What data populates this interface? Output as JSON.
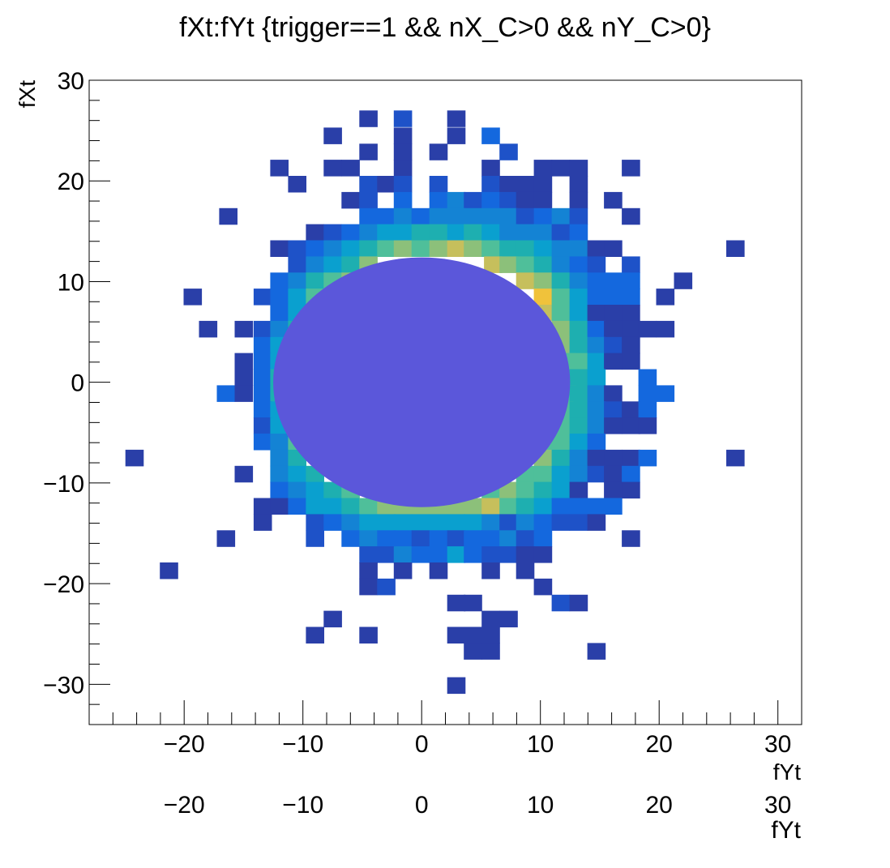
{
  "chart_data": {
    "type": "heatmap",
    "title": "fXt:fYt {trigger==1 && nX_C>0 && nY_C>0}",
    "xlabel": "fYt",
    "ylabel": "fXt",
    "xlim": [
      -28,
      32
    ],
    "ylim": [
      -34,
      30
    ],
    "xticks": [
      -20,
      -10,
      0,
      10,
      20,
      30
    ],
    "yticks": [
      -30,
      -20,
      -10,
      0,
      10,
      20,
      30
    ],
    "xtick_labels": [
      "−20",
      "−10",
      "0",
      "10",
      "20",
      "30"
    ],
    "ytick_labels": [
      "−30",
      "−20",
      "−10",
      "0",
      "10",
      "20",
      "30"
    ],
    "ghost_xtick_labels": [
      "−20",
      "−10",
      "0",
      "10",
      "20",
      "30"
    ],
    "ghost_xlabel": "fYt",
    "bin_width": 1.5,
    "bin_height": 1.6,
    "colors": {
      "l1": "#2a3fa8",
      "l2": "#1e52c8",
      "l3": "#1468de",
      "l4": "#1483d4",
      "l5": "#0aa0cf",
      "l6": "#1eafb0",
      "l7": "#4fbf9a",
      "l8": "#8cc07a",
      "l9": "#c6bf5c",
      "l10": "#f0c23b",
      "overlay": "#5b57da"
    },
    "overlay_ellipse": {
      "cx": 0,
      "cy": 0,
      "rx": 12.5,
      "ry": 12.4
    },
    "bins": [
      [
        -4.5,
        26.2,
        1
      ],
      [
        -1.6,
        26.2,
        2
      ],
      [
        2.9,
        26.2,
        1
      ],
      [
        -7.5,
        24.5,
        1
      ],
      [
        -1.6,
        24.5,
        1
      ],
      [
        2.9,
        24.5,
        1
      ],
      [
        5.8,
        24.5,
        3
      ],
      [
        -4.5,
        22.9,
        1
      ],
      [
        -1.6,
        22.9,
        1
      ],
      [
        1.4,
        22.9,
        1
      ],
      [
        7.3,
        22.9,
        2
      ],
      [
        -12.0,
        21.3,
        1
      ],
      [
        -7.5,
        21.3,
        1
      ],
      [
        -6.0,
        21.3,
        1
      ],
      [
        -1.6,
        21.3,
        1
      ],
      [
        5.8,
        21.3,
        1
      ],
      [
        10.2,
        21.3,
        1
      ],
      [
        11.7,
        21.3,
        1
      ],
      [
        13.2,
        21.3,
        1
      ],
      [
        17.6,
        21.3,
        1
      ],
      [
        -10.5,
        19.7,
        1
      ],
      [
        -4.5,
        19.7,
        2
      ],
      [
        -3.0,
        19.7,
        1
      ],
      [
        -1.6,
        19.7,
        2
      ],
      [
        1.4,
        19.7,
        2
      ],
      [
        5.8,
        19.7,
        2
      ],
      [
        7.3,
        19.7,
        1
      ],
      [
        8.7,
        19.7,
        1
      ],
      [
        10.2,
        19.7,
        1
      ],
      [
        13.2,
        19.7,
        1
      ],
      [
        -6.0,
        18.1,
        1
      ],
      [
        -4.5,
        18.1,
        2
      ],
      [
        -1.6,
        18.1,
        3
      ],
      [
        1.4,
        18.1,
        3
      ],
      [
        2.9,
        18.1,
        4
      ],
      [
        4.3,
        18.1,
        2
      ],
      [
        5.8,
        18.1,
        3
      ],
      [
        7.3,
        18.1,
        2
      ],
      [
        8.7,
        18.1,
        1
      ],
      [
        10.2,
        18.1,
        1
      ],
      [
        13.2,
        18.1,
        1
      ],
      [
        16.1,
        18.1,
        1
      ],
      [
        -16.3,
        16.5,
        1
      ],
      [
        -4.5,
        16.5,
        3
      ],
      [
        -3.0,
        16.5,
        3
      ],
      [
        -1.6,
        16.5,
        4
      ],
      [
        -0.1,
        16.5,
        3
      ],
      [
        1.4,
        16.5,
        4
      ],
      [
        2.9,
        16.5,
        4
      ],
      [
        4.3,
        16.5,
        4
      ],
      [
        5.8,
        16.5,
        4
      ],
      [
        7.3,
        16.5,
        4
      ],
      [
        8.7,
        16.5,
        2
      ],
      [
        10.2,
        16.5,
        3
      ],
      [
        11.7,
        16.5,
        4
      ],
      [
        13.2,
        16.5,
        2
      ],
      [
        17.6,
        16.5,
        1
      ],
      [
        -9.0,
        14.9,
        1
      ],
      [
        -7.5,
        14.9,
        2
      ],
      [
        -6.0,
        14.9,
        3
      ],
      [
        -4.5,
        14.9,
        4
      ],
      [
        -3.0,
        14.9,
        5
      ],
      [
        -1.6,
        14.9,
        5
      ],
      [
        -0.1,
        14.9,
        6
      ],
      [
        1.4,
        14.9,
        6
      ],
      [
        2.9,
        14.9,
        5
      ],
      [
        4.3,
        14.9,
        6
      ],
      [
        5.8,
        14.9,
        5
      ],
      [
        7.3,
        14.9,
        4
      ],
      [
        8.7,
        14.9,
        4
      ],
      [
        10.2,
        14.9,
        4
      ],
      [
        11.7,
        14.9,
        2
      ],
      [
        13.2,
        14.9,
        3
      ],
      [
        -12.0,
        13.3,
        1
      ],
      [
        -10.5,
        13.3,
        2
      ],
      [
        -9.0,
        13.3,
        3
      ],
      [
        -7.5,
        13.3,
        4
      ],
      [
        -6.0,
        13.3,
        5
      ],
      [
        -4.5,
        13.3,
        6
      ],
      [
        -3.0,
        13.3,
        7
      ],
      [
        -1.6,
        13.3,
        8
      ],
      [
        -0.1,
        13.3,
        7
      ],
      [
        1.4,
        13.3,
        8
      ],
      [
        2.9,
        13.3,
        9
      ],
      [
        4.3,
        13.3,
        8
      ],
      [
        5.8,
        13.3,
        7
      ],
      [
        7.3,
        13.3,
        6
      ],
      [
        8.7,
        13.3,
        6
      ],
      [
        10.2,
        13.3,
        5
      ],
      [
        11.7,
        13.3,
        4
      ],
      [
        13.2,
        13.3,
        4
      ],
      [
        14.7,
        13.3,
        1
      ],
      [
        16.1,
        13.3,
        1
      ],
      [
        26.4,
        13.3,
        1
      ],
      [
        -10.5,
        11.7,
        2
      ],
      [
        -9.0,
        11.7,
        4
      ],
      [
        -7.5,
        11.7,
        5
      ],
      [
        -6.0,
        11.7,
        6
      ],
      [
        -4.5,
        11.7,
        8
      ],
      [
        6.0,
        11.7,
        9
      ],
      [
        7.3,
        11.7,
        8
      ],
      [
        8.7,
        11.7,
        7
      ],
      [
        10.2,
        11.7,
        6
      ],
      [
        11.7,
        11.7,
        4
      ],
      [
        13.2,
        11.7,
        3
      ],
      [
        14.7,
        11.7,
        2
      ],
      [
        17.6,
        11.7,
        2
      ],
      [
        -12.0,
        10.1,
        3
      ],
      [
        -10.5,
        10.1,
        4
      ],
      [
        -9.0,
        10.1,
        6
      ],
      [
        -7.5,
        10.1,
        7
      ],
      [
        -6.0,
        10.1,
        8
      ],
      [
        8.7,
        10.1,
        9
      ],
      [
        10.2,
        10.1,
        8
      ],
      [
        11.7,
        10.1,
        6
      ],
      [
        13.2,
        10.1,
        4
      ],
      [
        14.7,
        10.1,
        3
      ],
      [
        16.1,
        10.1,
        3
      ],
      [
        17.6,
        10.1,
        3
      ],
      [
        22.0,
        10.1,
        1
      ],
      [
        -19.3,
        8.5,
        1
      ],
      [
        -13.4,
        8.5,
        2
      ],
      [
        -12.0,
        8.5,
        3
      ],
      [
        -10.5,
        8.5,
        5
      ],
      [
        -9.0,
        8.5,
        7
      ],
      [
        -7.5,
        8.5,
        8
      ],
      [
        10.2,
        8.5,
        10
      ],
      [
        11.7,
        8.5,
        7
      ],
      [
        13.2,
        8.5,
        5
      ],
      [
        14.7,
        8.5,
        3
      ],
      [
        16.1,
        8.5,
        3
      ],
      [
        17.6,
        8.5,
        3
      ],
      [
        20.5,
        8.5,
        1
      ],
      [
        -12.0,
        6.9,
        3
      ],
      [
        -10.5,
        6.9,
        5
      ],
      [
        -9.0,
        6.9,
        7
      ],
      [
        10.2,
        6.9,
        9
      ],
      [
        11.7,
        6.9,
        7
      ],
      [
        13.2,
        6.9,
        5
      ],
      [
        14.7,
        6.9,
        1
      ],
      [
        16.1,
        6.9,
        1
      ],
      [
        17.6,
        6.9,
        1
      ],
      [
        -18.0,
        5.3,
        1
      ],
      [
        -15.0,
        5.3,
        1
      ],
      [
        -13.4,
        5.3,
        2
      ],
      [
        -12.0,
        5.3,
        4
      ],
      [
        -10.5,
        5.3,
        6
      ],
      [
        11.7,
        5.3,
        8
      ],
      [
        13.2,
        5.3,
        6
      ],
      [
        14.7,
        5.3,
        3
      ],
      [
        16.1,
        5.3,
        1
      ],
      [
        17.6,
        5.3,
        1
      ],
      [
        19.0,
        5.3,
        1
      ],
      [
        20.5,
        5.3,
        1
      ],
      [
        -13.4,
        3.7,
        3
      ],
      [
        -12.0,
        3.7,
        5
      ],
      [
        -10.5,
        3.7,
        7
      ],
      [
        11.7,
        3.7,
        8
      ],
      [
        13.2,
        3.7,
        6
      ],
      [
        14.7,
        3.7,
        4
      ],
      [
        16.1,
        3.7,
        2
      ],
      [
        17.6,
        3.7,
        1
      ],
      [
        -15.0,
        2.1,
        1
      ],
      [
        -13.4,
        2.1,
        3
      ],
      [
        -12.0,
        2.1,
        5
      ],
      [
        12.2,
        2.1,
        7
      ],
      [
        13.2,
        2.1,
        7
      ],
      [
        14.7,
        2.1,
        5
      ],
      [
        16.1,
        2.1,
        1
      ],
      [
        17.6,
        2.1,
        1
      ],
      [
        -15.0,
        0.5,
        1
      ],
      [
        -13.4,
        0.5,
        3
      ],
      [
        -12.0,
        0.5,
        6
      ],
      [
        12.5,
        0.5,
        7
      ],
      [
        13.2,
        0.5,
        6
      ],
      [
        14.7,
        0.5,
        5
      ],
      [
        19.0,
        0.5,
        3
      ],
      [
        -16.5,
        -1.1,
        3
      ],
      [
        -15.0,
        -1.1,
        1
      ],
      [
        -13.4,
        -1.1,
        3
      ],
      [
        -12.0,
        -1.1,
        6
      ],
      [
        12.2,
        -1.1,
        7
      ],
      [
        13.2,
        -1.1,
        6
      ],
      [
        14.7,
        -1.1,
        4
      ],
      [
        16.1,
        -1.1,
        1
      ],
      [
        19.0,
        -1.1,
        3
      ],
      [
        20.5,
        -1.1,
        3
      ],
      [
        -13.4,
        -2.7,
        3
      ],
      [
        -12.0,
        -2.7,
        5
      ],
      [
        12.0,
        -2.7,
        7
      ],
      [
        13.2,
        -2.7,
        6
      ],
      [
        14.7,
        -2.7,
        4
      ],
      [
        16.1,
        -2.7,
        2
      ],
      [
        17.6,
        -2.7,
        1
      ],
      [
        19.0,
        -2.7,
        3
      ],
      [
        -13.4,
        -4.3,
        2
      ],
      [
        -12.0,
        -4.3,
        5
      ],
      [
        11.7,
        -4.3,
        7
      ],
      [
        13.2,
        -4.3,
        6
      ],
      [
        14.7,
        -4.3,
        4
      ],
      [
        16.1,
        -4.3,
        1
      ],
      [
        17.6,
        -4.3,
        1
      ],
      [
        19.0,
        -4.3,
        1
      ],
      [
        -13.4,
        -5.9,
        3
      ],
      [
        -12.0,
        -5.9,
        4
      ],
      [
        -10.5,
        -5.9,
        7
      ],
      [
        10.2,
        -5.9,
        7
      ],
      [
        11.7,
        -5.9,
        7
      ],
      [
        13.2,
        -5.9,
        5
      ],
      [
        14.7,
        -5.9,
        3
      ],
      [
        -24.2,
        -7.5,
        1
      ],
      [
        -12.0,
        -7.5,
        4
      ],
      [
        -10.5,
        -7.5,
        6
      ],
      [
        10.2,
        -7.5,
        8
      ],
      [
        11.7,
        -7.5,
        6
      ],
      [
        13.2,
        -7.5,
        4
      ],
      [
        14.7,
        -7.5,
        1
      ],
      [
        16.1,
        -7.5,
        1
      ],
      [
        17.6,
        -7.5,
        1
      ],
      [
        19.0,
        -7.5,
        3
      ],
      [
        26.4,
        -7.5,
        1
      ],
      [
        -15.0,
        -9.1,
        1
      ],
      [
        -12.0,
        -9.1,
        4
      ],
      [
        -10.5,
        -9.1,
        5
      ],
      [
        -9.0,
        -9.1,
        6
      ],
      [
        8.7,
        -9.1,
        7
      ],
      [
        10.2,
        -9.1,
        7
      ],
      [
        11.7,
        -9.1,
        5
      ],
      [
        13.2,
        -9.1,
        4
      ],
      [
        14.7,
        -9.1,
        2
      ],
      [
        16.1,
        -9.1,
        1
      ],
      [
        17.6,
        -9.1,
        3
      ],
      [
        -12.0,
        -10.7,
        3
      ],
      [
        -10.5,
        -10.7,
        4
      ],
      [
        -9.0,
        -10.7,
        5
      ],
      [
        -7.5,
        -10.7,
        6
      ],
      [
        -6.0,
        -10.7,
        7
      ],
      [
        5.8,
        -10.7,
        7
      ],
      [
        7.3,
        -10.7,
        8
      ],
      [
        8.7,
        -10.7,
        7
      ],
      [
        10.2,
        -10.7,
        6
      ],
      [
        11.7,
        -10.7,
        5
      ],
      [
        13.2,
        -10.7,
        1
      ],
      [
        16.1,
        -10.7,
        1
      ],
      [
        17.6,
        -10.7,
        1
      ],
      [
        -13.4,
        -12.3,
        1
      ],
      [
        -12.0,
        -12.3,
        1
      ],
      [
        -10.5,
        -12.3,
        3
      ],
      [
        -9.0,
        -12.3,
        5
      ],
      [
        -7.5,
        -12.3,
        5
      ],
      [
        -6.0,
        -12.3,
        6
      ],
      [
        -4.5,
        -12.3,
        7
      ],
      [
        -3.0,
        -12.3,
        8
      ],
      [
        -1.6,
        -12.3,
        8
      ],
      [
        -0.1,
        -12.3,
        8
      ],
      [
        1.4,
        -12.3,
        8
      ],
      [
        2.9,
        -12.3,
        8
      ],
      [
        4.3,
        -12.3,
        8
      ],
      [
        5.8,
        -12.3,
        9
      ],
      [
        7.3,
        -12.3,
        7
      ],
      [
        8.7,
        -12.3,
        6
      ],
      [
        10.2,
        -12.3,
        5
      ],
      [
        11.7,
        -12.3,
        3
      ],
      [
        13.2,
        -12.3,
        3
      ],
      [
        14.7,
        -12.3,
        3
      ],
      [
        16.1,
        -12.3,
        3
      ],
      [
        -13.4,
        -13.9,
        1
      ],
      [
        -9.0,
        -13.9,
        2
      ],
      [
        -7.5,
        -13.9,
        3
      ],
      [
        -6.0,
        -13.9,
        4
      ],
      [
        -4.5,
        -13.9,
        5
      ],
      [
        -3.0,
        -13.9,
        5
      ],
      [
        -1.6,
        -13.9,
        5
      ],
      [
        -0.1,
        -13.9,
        5
      ],
      [
        1.4,
        -13.9,
        5
      ],
      [
        2.9,
        -13.9,
        5
      ],
      [
        4.3,
        -13.9,
        5
      ],
      [
        5.8,
        -13.9,
        4
      ],
      [
        7.3,
        -13.9,
        2
      ],
      [
        8.7,
        -13.9,
        4
      ],
      [
        10.2,
        -13.9,
        3
      ],
      [
        11.7,
        -13.9,
        2
      ],
      [
        13.2,
        -13.9,
        2
      ],
      [
        14.7,
        -13.9,
        1
      ],
      [
        -16.5,
        -15.5,
        1
      ],
      [
        -9.0,
        -15.5,
        2
      ],
      [
        -6.0,
        -15.5,
        3
      ],
      [
        -4.5,
        -15.5,
        4
      ],
      [
        -3.0,
        -15.5,
        3
      ],
      [
        -1.6,
        -15.5,
        3
      ],
      [
        -0.1,
        -15.5,
        2
      ],
      [
        1.4,
        -15.5,
        3
      ],
      [
        2.9,
        -15.5,
        2
      ],
      [
        4.3,
        -15.5,
        3
      ],
      [
        5.8,
        -15.5,
        3
      ],
      [
        7.3,
        -15.5,
        4
      ],
      [
        8.7,
        -15.5,
        2
      ],
      [
        10.2,
        -15.5,
        3
      ],
      [
        17.6,
        -15.5,
        1
      ],
      [
        -4.5,
        -17.1,
        2
      ],
      [
        -3.0,
        -17.1,
        2
      ],
      [
        -1.6,
        -17.1,
        4
      ],
      [
        -0.1,
        -17.1,
        3
      ],
      [
        1.4,
        -17.1,
        3
      ],
      [
        2.9,
        -17.1,
        5
      ],
      [
        4.3,
        -17.1,
        3
      ],
      [
        5.8,
        -17.1,
        2
      ],
      [
        7.3,
        -17.1,
        2
      ],
      [
        8.7,
        -17.1,
        1
      ],
      [
        10.2,
        -17.1,
        1
      ],
      [
        -21.3,
        -18.7,
        1
      ],
      [
        -4.5,
        -18.7,
        1
      ],
      [
        -1.6,
        -18.7,
        1
      ],
      [
        1.4,
        -18.7,
        1
      ],
      [
        5.8,
        -18.7,
        1
      ],
      [
        8.7,
        -18.7,
        1
      ],
      [
        -4.5,
        -20.3,
        1
      ],
      [
        -3.0,
        -20.3,
        2
      ],
      [
        10.2,
        -20.3,
        1
      ],
      [
        2.9,
        -21.9,
        1
      ],
      [
        4.3,
        -21.9,
        1
      ],
      [
        11.7,
        -21.9,
        2
      ],
      [
        13.2,
        -21.9,
        1
      ],
      [
        -7.5,
        -23.5,
        1
      ],
      [
        5.8,
        -23.5,
        1
      ],
      [
        7.3,
        -23.5,
        1
      ],
      [
        -9.0,
        -25.1,
        1
      ],
      [
        -4.5,
        -25.1,
        1
      ],
      [
        2.9,
        -25.1,
        1
      ],
      [
        4.3,
        -25.1,
        1
      ],
      [
        5.8,
        -25.1,
        1
      ],
      [
        4.3,
        -26.7,
        1
      ],
      [
        5.8,
        -26.7,
        1
      ],
      [
        14.7,
        -26.7,
        1
      ],
      [
        2.9,
        -30.1,
        1
      ]
    ]
  }
}
